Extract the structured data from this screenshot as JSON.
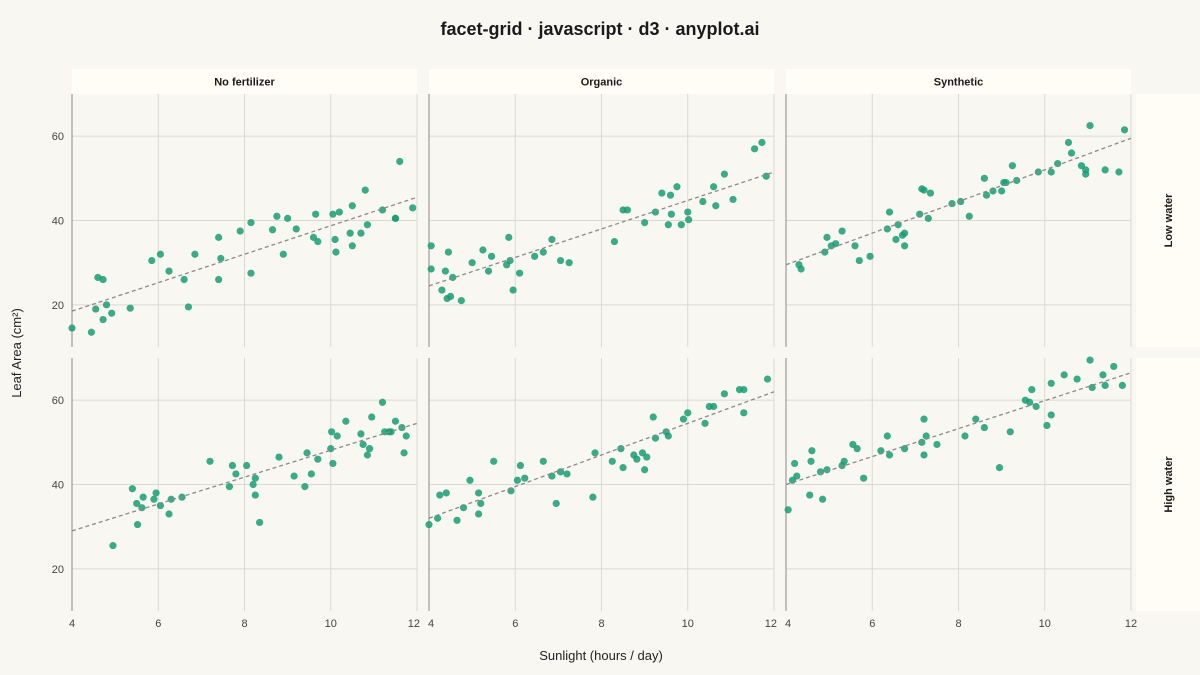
{
  "chart_data": {
    "type": "scatter",
    "title": "facet-grid · javascript · d3 · anyplot.ai",
    "xlabel": "Sunlight (hours / day)",
    "ylabel": "Leaf Area (cm²)",
    "xlim": [
      4,
      12
    ],
    "ylim": [
      10,
      70
    ],
    "xticks": [
      4,
      6,
      8,
      10,
      12
    ],
    "yticks": [
      20,
      40,
      60
    ],
    "columns": [
      "No fertilizer",
      "Organic",
      "Synthetic"
    ],
    "rows": [
      "Low water",
      "High water"
    ],
    "point_color": "#1a9c74",
    "trend_color": "#8a8a8a",
    "panels": [
      {
        "row": "Low water",
        "col": "No fertilizer",
        "trend": {
          "x": [
            4,
            12
          ],
          "y": [
            18.5,
            45.5
          ]
        },
        "points": [
          [
            4,
            14.5
          ],
          [
            4.45,
            13.5
          ],
          [
            4.55,
            19.0
          ],
          [
            4.6,
            26.5
          ],
          [
            4.72,
            26.0
          ],
          [
            4.72,
            16.5
          ],
          [
            4.8,
            20.0
          ],
          [
            4.92,
            18.0
          ],
          [
            5.35,
            19.2
          ],
          [
            5.85,
            30.5
          ],
          [
            6.05,
            32.0
          ],
          [
            6.25,
            28.0
          ],
          [
            6.6,
            26.0
          ],
          [
            6.7,
            19.5
          ],
          [
            6.85,
            32.0
          ],
          [
            7.4,
            26.0
          ],
          [
            7.4,
            36.0
          ],
          [
            7.45,
            31.0
          ],
          [
            7.9,
            37.5
          ],
          [
            8.15,
            39.5
          ],
          [
            8.15,
            27.5
          ],
          [
            8.65,
            37.8
          ],
          [
            8.75,
            41.0
          ],
          [
            8.9,
            32.0
          ],
          [
            9.0,
            40.5
          ],
          [
            9.2,
            38.0
          ],
          [
            9.6,
            36.0
          ],
          [
            9.65,
            41.5
          ],
          [
            9.7,
            35.0
          ],
          [
            10.05,
            41.5
          ],
          [
            10.1,
            35.5
          ],
          [
            10.12,
            32.5
          ],
          [
            10.2,
            42.0
          ],
          [
            10.45,
            37.0
          ],
          [
            10.5,
            34.0
          ],
          [
            10.5,
            43.5
          ],
          [
            10.7,
            37.0
          ],
          [
            10.8,
            47.2
          ],
          [
            10.85,
            39.0
          ],
          [
            11.2,
            42.5
          ],
          [
            11.5,
            40.5
          ],
          [
            11.5,
            40.5
          ],
          [
            11.6,
            54.0
          ],
          [
            11.9,
            43.0
          ]
        ]
      },
      {
        "row": "Low water",
        "col": "Organic",
        "trend": {
          "x": [
            4,
            12
          ],
          "y": [
            24.5,
            51.5
          ]
        },
        "points": [
          [
            4.05,
            34.0
          ],
          [
            4.05,
            28.5
          ],
          [
            4.3,
            23.5
          ],
          [
            4.38,
            28.0
          ],
          [
            4.42,
            21.5
          ],
          [
            4.45,
            32.5
          ],
          [
            4.5,
            22.0
          ],
          [
            4.55,
            26.5
          ],
          [
            4.75,
            21.0
          ],
          [
            5.0,
            30.0
          ],
          [
            5.25,
            33.0
          ],
          [
            5.38,
            28.0
          ],
          [
            5.45,
            31.5
          ],
          [
            5.8,
            29.5
          ],
          [
            5.85,
            36.0
          ],
          [
            5.88,
            30.5
          ],
          [
            5.95,
            23.5
          ],
          [
            6.1,
            27.5
          ],
          [
            6.45,
            31.5
          ],
          [
            6.65,
            32.5
          ],
          [
            6.85,
            35.5
          ],
          [
            7.05,
            30.5
          ],
          [
            7.25,
            30.0
          ],
          [
            8.3,
            35.0
          ],
          [
            8.5,
            42.5
          ],
          [
            8.6,
            42.5
          ],
          [
            9.0,
            39.5
          ],
          [
            9.25,
            42.0
          ],
          [
            9.4,
            46.5
          ],
          [
            9.55,
            39.0
          ],
          [
            9.6,
            46.0
          ],
          [
            9.62,
            41.5
          ],
          [
            9.75,
            48.0
          ],
          [
            9.85,
            39.0
          ],
          [
            10.0,
            42.0
          ],
          [
            10.02,
            40.2
          ],
          [
            10.35,
            44.5
          ],
          [
            10.6,
            48.0
          ],
          [
            10.65,
            43.5
          ],
          [
            10.85,
            51.0
          ],
          [
            11.05,
            45.0
          ],
          [
            11.55,
            57.0
          ],
          [
            11.72,
            58.5
          ],
          [
            11.82,
            50.5
          ]
        ]
      },
      {
        "row": "Low water",
        "col": "Synthetic",
        "trend": {
          "x": [
            4,
            12
          ],
          "y": [
            29.5,
            59.5
          ]
        },
        "points": [
          [
            4.3,
            29.5
          ],
          [
            4.35,
            28.5
          ],
          [
            4.9,
            32.5
          ],
          [
            4.95,
            36.0
          ],
          [
            5.05,
            34.0
          ],
          [
            5.15,
            34.5
          ],
          [
            5.3,
            37.5
          ],
          [
            5.6,
            34.0
          ],
          [
            5.7,
            30.5
          ],
          [
            5.95,
            31.5
          ],
          [
            6.35,
            38.0
          ],
          [
            6.4,
            42.0
          ],
          [
            6.55,
            35.5
          ],
          [
            6.6,
            39.0
          ],
          [
            6.7,
            36.5
          ],
          [
            6.75,
            34.0
          ],
          [
            6.75,
            37.0
          ],
          [
            7.1,
            41.5
          ],
          [
            7.15,
            47.5
          ],
          [
            7.2,
            47.2
          ],
          [
            7.3,
            40.5
          ],
          [
            7.35,
            46.5
          ],
          [
            7.85,
            44.0
          ],
          [
            8.05,
            44.5
          ],
          [
            8.25,
            41.0
          ],
          [
            8.6,
            50.0
          ],
          [
            8.65,
            46.0
          ],
          [
            8.8,
            47.0
          ],
          [
            9.0,
            47.0
          ],
          [
            9.05,
            49.0
          ],
          [
            9.1,
            49.0
          ],
          [
            9.25,
            53.0
          ],
          [
            9.35,
            49.5
          ],
          [
            9.85,
            51.5
          ],
          [
            10.15,
            51.5
          ],
          [
            10.3,
            53.5
          ],
          [
            10.55,
            58.5
          ],
          [
            10.62,
            56.0
          ],
          [
            10.85,
            53.0
          ],
          [
            10.95,
            51.0
          ],
          [
            10.95,
            52.0
          ],
          [
            11.05,
            62.5
          ],
          [
            11.4,
            52.0
          ],
          [
            11.72,
            51.5
          ],
          [
            11.85,
            61.5
          ]
        ]
      },
      {
        "row": "High water",
        "col": "No fertilizer",
        "trend": {
          "x": [
            4,
            12
          ],
          "y": [
            29.0,
            54.5
          ]
        },
        "points": [
          [
            4.95,
            25.5
          ],
          [
            5.4,
            39.0
          ],
          [
            5.5,
            35.5
          ],
          [
            5.52,
            30.5
          ],
          [
            5.62,
            34.5
          ],
          [
            5.65,
            37.0
          ],
          [
            5.9,
            36.5
          ],
          [
            5.95,
            38.0
          ],
          [
            6.05,
            35.0
          ],
          [
            6.25,
            33.0
          ],
          [
            6.3,
            36.5
          ],
          [
            6.55,
            37.0
          ],
          [
            7.2,
            45.5
          ],
          [
            7.65,
            39.5
          ],
          [
            7.72,
            44.5
          ],
          [
            7.8,
            42.5
          ],
          [
            8.05,
            44.5
          ],
          [
            8.2,
            40.0
          ],
          [
            8.25,
            37.5
          ],
          [
            8.25,
            41.5
          ],
          [
            8.35,
            31.0
          ],
          [
            8.8,
            46.5
          ],
          [
            9.15,
            42.0
          ],
          [
            9.4,
            39.5
          ],
          [
            9.45,
            47.5
          ],
          [
            9.55,
            42.5
          ],
          [
            9.7,
            46.0
          ],
          [
            10.0,
            48.5
          ],
          [
            10.02,
            52.5
          ],
          [
            10.05,
            45.0
          ],
          [
            10.15,
            51.5
          ],
          [
            10.35,
            55.0
          ],
          [
            10.7,
            52.0
          ],
          [
            10.75,
            49.5
          ],
          [
            10.85,
            47.0
          ],
          [
            10.9,
            48.5
          ],
          [
            10.95,
            56.0
          ],
          [
            11.2,
            59.5
          ],
          [
            11.25,
            52.5
          ],
          [
            11.35,
            52.5
          ],
          [
            11.4,
            52.5
          ],
          [
            11.5,
            55.0
          ],
          [
            11.65,
            53.5
          ],
          [
            11.7,
            47.5
          ],
          [
            11.75,
            51.5
          ]
        ]
      },
      {
        "row": "High water",
        "col": "Organic",
        "trend": {
          "x": [
            4,
            12
          ],
          "y": [
            32.0,
            62.0
          ]
        },
        "points": [
          [
            4.0,
            30.5
          ],
          [
            4.2,
            32.0
          ],
          [
            4.25,
            37.5
          ],
          [
            4.4,
            38.0
          ],
          [
            4.65,
            31.5
          ],
          [
            4.8,
            34.5
          ],
          [
            4.95,
            41.0
          ],
          [
            5.15,
            33.0
          ],
          [
            5.2,
            35.5
          ],
          [
            5.15,
            38.0
          ],
          [
            5.5,
            45.5
          ],
          [
            5.9,
            38.5
          ],
          [
            6.05,
            41.0
          ],
          [
            6.12,
            44.5
          ],
          [
            6.22,
            41.5
          ],
          [
            6.65,
            45.5
          ],
          [
            6.85,
            42.0
          ],
          [
            6.95,
            35.5
          ],
          [
            7.05,
            43.0
          ],
          [
            7.2,
            42.5
          ],
          [
            7.8,
            37.0
          ],
          [
            7.85,
            47.5
          ],
          [
            8.25,
            45.5
          ],
          [
            8.45,
            48.5
          ],
          [
            8.5,
            44.0
          ],
          [
            8.75,
            47.0
          ],
          [
            8.82,
            46.0
          ],
          [
            8.95,
            47.5
          ],
          [
            9.0,
            43.5
          ],
          [
            9.05,
            46.5
          ],
          [
            9.2,
            56.0
          ],
          [
            9.25,
            51.0
          ],
          [
            9.5,
            52.5
          ],
          [
            9.55,
            51.5
          ],
          [
            9.9,
            55.5
          ],
          [
            10.0,
            57.0
          ],
          [
            10.4,
            54.5
          ],
          [
            10.5,
            58.5
          ],
          [
            10.6,
            58.5
          ],
          [
            10.85,
            61.5
          ],
          [
            11.2,
            62.5
          ],
          [
            11.3,
            62.5
          ],
          [
            11.3,
            57.0
          ],
          [
            11.85,
            65.0
          ]
        ]
      },
      {
        "row": "High water",
        "col": "Synthetic",
        "trend": {
          "x": [
            4,
            12
          ],
          "y": [
            40.0,
            66.5
          ]
        },
        "points": [
          [
            4.05,
            34.0
          ],
          [
            4.15,
            41.0
          ],
          [
            4.2,
            45.0
          ],
          [
            4.25,
            42.0
          ],
          [
            4.55,
            37.5
          ],
          [
            4.6,
            48.0
          ],
          [
            4.58,
            45.5
          ],
          [
            4.8,
            43.0
          ],
          [
            4.85,
            36.5
          ],
          [
            4.95,
            43.5
          ],
          [
            5.3,
            44.5
          ],
          [
            5.35,
            45.5
          ],
          [
            5.55,
            49.5
          ],
          [
            5.65,
            48.5
          ],
          [
            5.8,
            41.5
          ],
          [
            6.2,
            48.0
          ],
          [
            6.35,
            51.5
          ],
          [
            6.4,
            47.0
          ],
          [
            6.75,
            48.5
          ],
          [
            7.15,
            50.0
          ],
          [
            7.2,
            47.0
          ],
          [
            7.25,
            51.5
          ],
          [
            7.2,
            55.5
          ],
          [
            7.5,
            49.5
          ],
          [
            8.15,
            51.5
          ],
          [
            8.4,
            55.5
          ],
          [
            8.6,
            53.5
          ],
          [
            8.95,
            44.0
          ],
          [
            9.2,
            52.5
          ],
          [
            9.55,
            60.0
          ],
          [
            9.65,
            59.5
          ],
          [
            9.7,
            62.5
          ],
          [
            9.8,
            58.5
          ],
          [
            10.05,
            54.0
          ],
          [
            10.15,
            56.5
          ],
          [
            10.15,
            64.0
          ],
          [
            10.45,
            66.0
          ],
          [
            10.75,
            65.0
          ],
          [
            11.05,
            69.5
          ],
          [
            11.1,
            63.0
          ],
          [
            11.35,
            66.0
          ],
          [
            11.4,
            63.5
          ],
          [
            11.6,
            68.0
          ],
          [
            11.8,
            63.5
          ]
        ]
      }
    ]
  }
}
